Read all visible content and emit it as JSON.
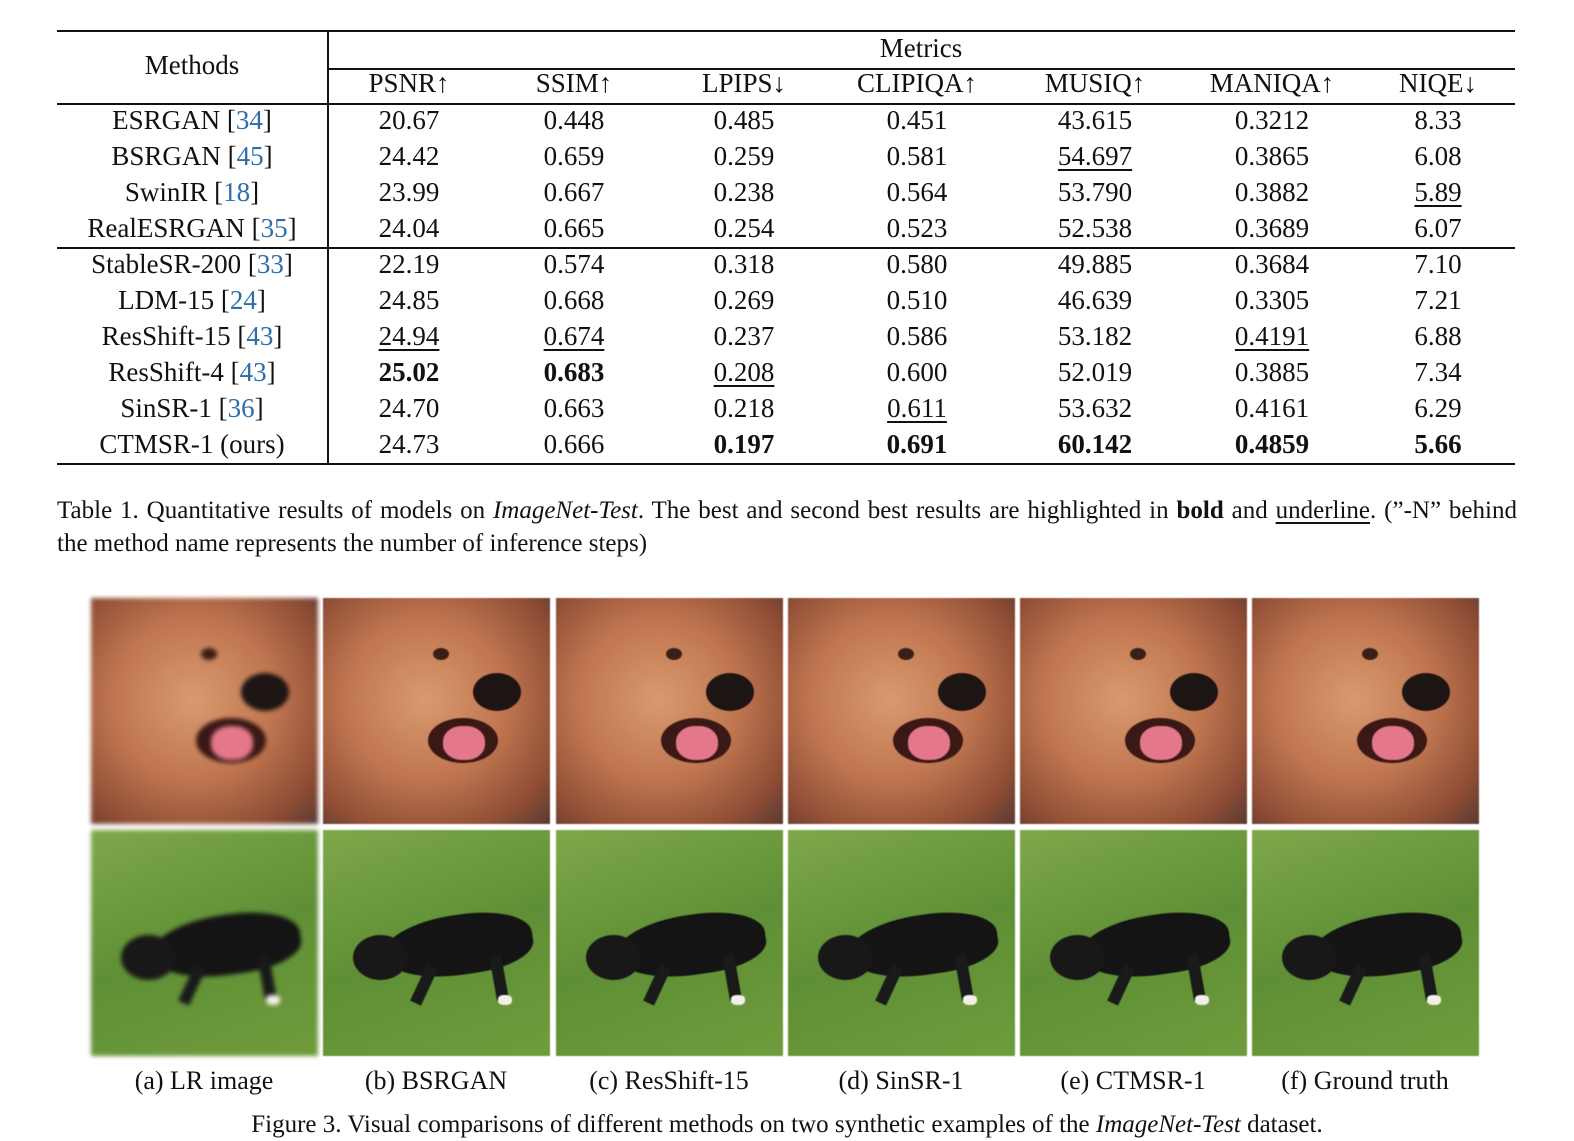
{
  "table": {
    "header": {
      "methods": "Methods",
      "metrics": "Metrics",
      "columns": [
        "PSNR↑",
        "SSIM↑",
        "LPIPS↓",
        "CLIPIQA↑",
        "MUSIQ↑",
        "MANIQA↑",
        "NIQE↓"
      ]
    },
    "rows": [
      [
        "ESRGAN [34]",
        "20.67",
        "0.448",
        "0.485",
        "0.451",
        "43.615",
        "0.3212",
        "8.33"
      ],
      [
        "BSRGAN [45]",
        "24.42",
        "0.659",
        "0.259",
        "0.581",
        {
          "text": "54.697",
          "style": "underline"
        },
        "0.3865",
        "6.08"
      ],
      [
        "SwinIR [18]",
        "23.99",
        "0.667",
        "0.238",
        "0.564",
        "53.790",
        "0.3882",
        {
          "text": "5.89",
          "style": "underline"
        }
      ],
      [
        "RealESRGAN [35]",
        "24.04",
        "0.665",
        "0.254",
        "0.523",
        "52.538",
        "0.3689",
        "6.07"
      ],
      [
        "StableSR-200 [33]",
        "22.19",
        "0.574",
        "0.318",
        "0.580",
        "49.885",
        "0.3684",
        "7.10"
      ],
      [
        "LDM-15 [24]",
        "24.85",
        "0.668",
        "0.269",
        "0.510",
        "46.639",
        "0.3305",
        "7.21"
      ],
      [
        "ResShift-15 [43]",
        {
          "text": "24.94",
          "style": "underline"
        },
        {
          "text": "0.674",
          "style": "underline"
        },
        "0.237",
        "0.586",
        "53.182",
        {
          "text": "0.4191",
          "style": "underline"
        },
        "6.88"
      ],
      [
        "ResShift-4 [43]",
        {
          "text": "25.02",
          "style": "bold"
        },
        {
          "text": "0.683",
          "style": "bold"
        },
        {
          "text": "0.208",
          "style": "underline"
        },
        "0.600",
        "52.019",
        "0.3885",
        "7.34"
      ],
      [
        "SinSR-1 [36]",
        "24.70",
        "0.663",
        "0.218",
        {
          "text": "0.611",
          "style": "underline"
        },
        "53.632",
        "0.4161",
        "6.29"
      ],
      [
        "CTMSR-1 (ours)",
        "24.73",
        "0.666",
        {
          "text": "0.197",
          "style": "bold"
        },
        {
          "text": "0.691",
          "style": "bold"
        },
        {
          "text": "60.142",
          "style": "bold"
        },
        {
          "text": "0.4859",
          "style": "bold"
        },
        {
          "text": "5.66",
          "style": "bold"
        }
      ]
    ],
    "caption": [
      {
        "text": "Table 1. Quantitative results of models on "
      },
      {
        "text": "ImageNet-Test",
        "style": "italic"
      },
      {
        "text": ". The best and second best results are highlighted in "
      },
      {
        "text": "bold",
        "style": "bold"
      },
      {
        "text": " and "
      },
      {
        "text": "underline",
        "style": "underline"
      },
      {
        "text": ". (”-N” behind the method name represents the number of inference steps)"
      }
    ]
  },
  "figure": {
    "panels": [
      "(a) LR image",
      "(b) BSRGAN",
      "(c) ResShift-15",
      "(d) SinSR-1",
      "(e) CTMSR-1",
      "(f) Ground truth"
    ],
    "caption": [
      {
        "text": "Figure 3. Visual comparisons of different methods on two synthetic examples of the "
      },
      {
        "text": "ImageNet-Test",
        "style": "italic"
      },
      {
        "text": " dataset."
      }
    ]
  }
}
